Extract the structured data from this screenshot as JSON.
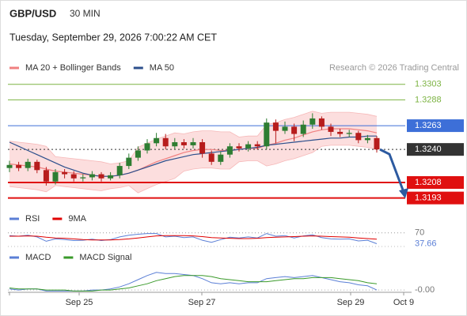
{
  "header": {
    "symbol": "GBP/USD",
    "interval": "30 MIN",
    "datetime": "Tuesday, September 29, 2026 7:00:22 AM CET",
    "credit": "Research © 2026 Trading Central"
  },
  "x_axis": {
    "labels": [
      "Sep 25",
      "Sep 27",
      "Sep 29",
      "Oct 9"
    ]
  },
  "chart_data": [
    {
      "type": "candlestick",
      "ylim": [
        1.3182,
        1.3312
      ],
      "up_color": "#2e7d32",
      "down_color": "#b71c1c",
      "open": [
        1.3222,
        1.3225,
        1.3222,
        1.3228,
        1.322,
        1.3209,
        1.3218,
        1.3216,
        1.3212,
        1.3213,
        1.3216,
        1.3212,
        1.3215,
        1.3224,
        1.3232,
        1.3239,
        1.3246,
        1.3251,
        1.3243,
        1.3247,
        1.3244,
        1.3247,
        1.3236,
        1.3228,
        1.3235,
        1.3243,
        1.3241,
        1.3245,
        1.3243,
        1.3266,
        1.3258,
        1.3262,
        1.3255,
        1.3264,
        1.327,
        1.3262,
        1.3257,
        1.3255,
        1.3256,
        1.3249,
        1.3251
      ],
      "high": [
        1.3229,
        1.3228,
        1.3231,
        1.323,
        1.3223,
        1.3221,
        1.3221,
        1.3219,
        1.3216,
        1.3219,
        1.3218,
        1.3218,
        1.3227,
        1.3236,
        1.3243,
        1.325,
        1.3256,
        1.3255,
        1.3251,
        1.325,
        1.3251,
        1.325,
        1.3239,
        1.3238,
        1.3246,
        1.3246,
        1.3248,
        1.3248,
        1.327,
        1.3269,
        1.3267,
        1.3265,
        1.3268,
        1.3275,
        1.3272,
        1.3265,
        1.326,
        1.3259,
        1.3258,
        1.3254,
        1.3253
      ],
      "low": [
        1.3218,
        1.3219,
        1.3219,
        1.3217,
        1.3205,
        1.3206,
        1.3212,
        1.3209,
        1.3209,
        1.321,
        1.3209,
        1.321,
        1.3212,
        1.3221,
        1.3229,
        1.3236,
        1.3243,
        1.324,
        1.324,
        1.3241,
        1.3241,
        1.3232,
        1.3225,
        1.3225,
        1.3232,
        1.3238,
        1.3238,
        1.324,
        1.324,
        1.3246,
        1.3255,
        1.3248,
        1.3252,
        1.326,
        1.3259,
        1.3253,
        1.3252,
        1.3252,
        1.3246,
        1.3246,
        1.3237
      ],
      "close": [
        1.3225,
        1.3222,
        1.3228,
        1.322,
        1.3209,
        1.3218,
        1.3216,
        1.3212,
        1.3213,
        1.3216,
        1.3212,
        1.3215,
        1.3224,
        1.3232,
        1.3239,
        1.3246,
        1.3251,
        1.3243,
        1.3247,
        1.3244,
        1.3247,
        1.3236,
        1.3228,
        1.3235,
        1.3243,
        1.3241,
        1.3245,
        1.3243,
        1.3266,
        1.3258,
        1.3262,
        1.3255,
        1.3264,
        1.327,
        1.3262,
        1.3257,
        1.3255,
        1.3256,
        1.3249,
        1.3251,
        1.324
      ],
      "series": [
        {
          "name": "MA 20 + Bollinger Bands",
          "color": "#f08080",
          "band_color": "#fcdede",
          "values": [
            1.3226,
            1.3225,
            1.3224,
            1.3223,
            1.3221,
            1.3219,
            1.3218,
            1.3217,
            1.3216,
            1.3215,
            1.3214,
            1.3214,
            1.3215,
            1.3217,
            1.322,
            1.3224,
            1.3228,
            1.3231,
            1.3234,
            1.3237,
            1.3239,
            1.324,
            1.324,
            1.3239,
            1.3239,
            1.324,
            1.3241,
            1.3241,
            1.3244,
            1.3246,
            1.3249,
            1.3251,
            1.3254,
            1.3257,
            1.3259,
            1.326,
            1.326,
            1.326,
            1.3259,
            1.3258,
            1.3256
          ],
          "upper": [
            1.3248,
            1.3247,
            1.3246,
            1.3245,
            1.3243,
            1.3233,
            1.3232,
            1.3231,
            1.323,
            1.3229,
            1.3228,
            1.3226,
            1.3227,
            1.3229,
            1.3242,
            1.3246,
            1.325,
            1.3253,
            1.3256,
            1.3255,
            1.3257,
            1.3258,
            1.3258,
            1.3257,
            1.3257,
            1.3252,
            1.3253,
            1.3253,
            1.3264,
            1.3266,
            1.3269,
            1.3271,
            1.3274,
            1.3277,
            1.3275,
            1.3276,
            1.3276,
            1.3276,
            1.3275,
            1.3274,
            1.3272
          ],
          "lower": [
            1.3204,
            1.3203,
            1.3202,
            1.3201,
            1.3199,
            1.3205,
            1.3204,
            1.3203,
            1.3202,
            1.3201,
            1.32,
            1.3202,
            1.3203,
            1.3205,
            1.3198,
            1.3202,
            1.3206,
            1.3209,
            1.3212,
            1.3219,
            1.3221,
            1.3222,
            1.3222,
            1.3221,
            1.3221,
            1.3228,
            1.3229,
            1.3229,
            1.3224,
            1.3226,
            1.3229,
            1.3231,
            1.3234,
            1.3237,
            1.3243,
            1.3244,
            1.3244,
            1.3244,
            1.3243,
            1.3242,
            1.324
          ]
        },
        {
          "name": "MA 50",
          "color": "#2c4f8c",
          "values": [
            1.3247,
            1.3243,
            1.3239,
            1.3235,
            1.3231,
            1.3227,
            1.3223,
            1.322,
            1.3217,
            1.3215,
            1.3214,
            1.3214,
            1.3215,
            1.3217,
            1.322,
            1.3223,
            1.3226,
            1.3229,
            1.3231,
            1.3233,
            1.3235,
            1.3236,
            1.3237,
            1.3238,
            1.3239,
            1.324,
            1.3241,
            1.3242,
            1.3244,
            1.3245,
            1.3246,
            1.3247,
            1.3248,
            1.3249,
            1.325,
            1.3251,
            1.3251,
            1.3252,
            1.3252,
            1.3253,
            1.3253
          ]
        }
      ],
      "levels": [
        {
          "value": 1.3303,
          "label": "1.3303",
          "color": "#7cb342",
          "boxed": false,
          "dashed": false
        },
        {
          "value": 1.3288,
          "label": "1.3288",
          "color": "#7cb342",
          "boxed": false,
          "dashed": false
        },
        {
          "value": 1.3263,
          "label": "1.3263",
          "color": "#3d6fd8",
          "boxed": true,
          "dashed": false
        },
        {
          "value": 1.324,
          "label": "1.3240",
          "color": "#333333",
          "boxed": true,
          "dashed": true
        },
        {
          "value": 1.3208,
          "label": "1.3208",
          "color": "#e01010",
          "boxed": true,
          "dashed": false
        },
        {
          "value": 1.3193,
          "label": "1.3193",
          "color": "#e01010",
          "boxed": true,
          "dashed": false
        }
      ]
    },
    {
      "type": "line",
      "ylim": [
        20,
        86
      ],
      "yticks": [
        70
      ],
      "series": [
        {
          "name": "RSI",
          "color": "#5b7fd6",
          "values": [
            62,
            60,
            63,
            58,
            45,
            52,
            50,
            47,
            48,
            51,
            47,
            50,
            58,
            63,
            66,
            68,
            68,
            58,
            60,
            56,
            58,
            48,
            42,
            50,
            57,
            55,
            58,
            55,
            68,
            60,
            62,
            55,
            61,
            64,
            56,
            52,
            51,
            52,
            46,
            48,
            37.66
          ]
        },
        {
          "name": "9MA",
          "color": "#e00000",
          "values": [
            60,
            60,
            61,
            60,
            57,
            55,
            54,
            52,
            50,
            49,
            49,
            49,
            50,
            52,
            55,
            58,
            61,
            62,
            62,
            62,
            61,
            59,
            56,
            55,
            54,
            53,
            53,
            54,
            56,
            57,
            58,
            59,
            60,
            61,
            60,
            59,
            58,
            57,
            55,
            53,
            51
          ]
        }
      ]
    },
    {
      "type": "line",
      "ylim": [
        -0.0004,
        0.0022
      ],
      "yticks": [
        {
          "value": -0.0001,
          "label": "-0.00"
        }
      ],
      "series": [
        {
          "name": "MACD",
          "color": "#5b7fd6",
          "values": [
            0.0,
            -0.0001,
            0.0,
            0.0,
            -0.0002,
            -0.0002,
            -0.0002,
            -0.0002,
            -0.0002,
            -0.0001,
            -0.0001,
            0.0,
            0.0002,
            0.0005,
            0.0009,
            0.0013,
            0.0016,
            0.0015,
            0.0015,
            0.0014,
            0.0013,
            0.001,
            0.0006,
            0.0005,
            0.0006,
            0.0005,
            0.0006,
            0.0006,
            0.001,
            0.0011,
            0.0012,
            0.0011,
            0.0012,
            0.0013,
            0.0011,
            0.0009,
            0.0007,
            0.0006,
            0.0004,
            0.0003,
            -0.0001
          ]
        },
        {
          "name": "MACD Signal",
          "color": "#3a9a2a",
          "values": [
            0.0001,
            0.0,
            0.0,
            0.0,
            -0.0001,
            -0.0001,
            -0.0001,
            -0.0002,
            -0.0002,
            -0.0002,
            -0.0001,
            -0.0001,
            0.0,
            0.0001,
            0.0003,
            0.0005,
            0.0008,
            0.001,
            0.0012,
            0.0013,
            0.0013,
            0.0013,
            0.0012,
            0.001,
            0.0009,
            0.0008,
            0.0007,
            0.0007,
            0.0007,
            0.0008,
            0.0009,
            0.001,
            0.001,
            0.0011,
            0.0011,
            0.0011,
            0.001,
            0.0009,
            0.0008,
            0.0006,
            0.0005
          ]
        }
      ]
    }
  ]
}
